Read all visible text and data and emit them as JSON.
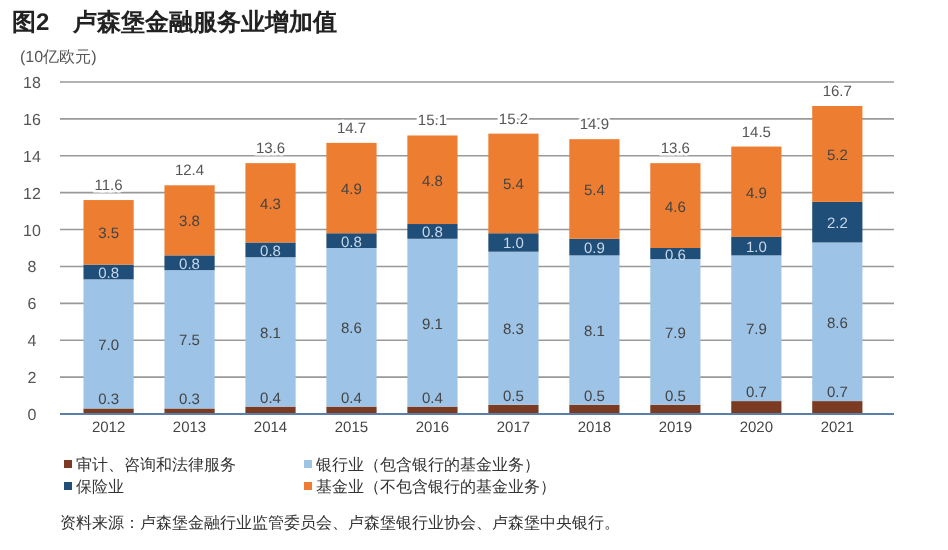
{
  "chart_data": {
    "type": "bar",
    "title": "图2　卢森堡金融服务业增加值",
    "ylabel": "(10亿欧元)",
    "categories": [
      "2012",
      "2013",
      "2014",
      "2015",
      "2016",
      "2017",
      "2018",
      "2019",
      "2020",
      "2021"
    ],
    "stacked": true,
    "series": [
      {
        "name": "审计、咨询和法律服务",
        "color": "#7b3a22",
        "values": [
          0.3,
          0.3,
          0.4,
          0.4,
          0.4,
          0.5,
          0.5,
          0.5,
          0.7,
          0.7
        ],
        "value_labels": [
          "0.3",
          "0.3",
          "0.4",
          "0.4",
          "0.4",
          "0.5",
          "0.5",
          "0.5",
          "0.7",
          "0.7"
        ]
      },
      {
        "name": "银行业（包含银行的基金业务）",
        "color": "#9dc3e6",
        "values": [
          7.0,
          7.5,
          8.1,
          8.6,
          9.1,
          8.3,
          8.1,
          7.9,
          7.9,
          8.6
        ],
        "value_labels": [
          "7.0",
          "7.5",
          "8.1",
          "8.6",
          "9.1",
          "8.3",
          "8.1",
          "7.9",
          "7.9",
          "8.6"
        ]
      },
      {
        "name": "保险业",
        "color": "#1f4e79",
        "values": [
          0.8,
          0.8,
          0.8,
          0.8,
          0.8,
          1.0,
          0.9,
          0.6,
          1.0,
          2.2
        ],
        "value_labels": [
          "0.8",
          "0.8",
          "0.8",
          "0.8",
          "0.8",
          "1.0",
          "0.9",
          "0.6",
          "1.0",
          "2.2"
        ]
      },
      {
        "name": "基金业（不包含银行的基金业务）",
        "color": "#ed7d31",
        "values": [
          3.5,
          3.8,
          4.3,
          4.9,
          4.8,
          5.4,
          5.4,
          4.6,
          4.9,
          5.2
        ],
        "value_labels": [
          "3.5",
          "3.8",
          "4.3",
          "4.9",
          "4.8",
          "5.4",
          "5.4",
          "4.6",
          "4.9",
          "5.2"
        ]
      }
    ],
    "totals": [
      "11.6",
      "12.4",
      "13.6",
      "14.7",
      "15.1",
      "15.2",
      "14.9",
      "13.6",
      "14.5",
      "16.7"
    ],
    "ylim": [
      0,
      18
    ],
    "yticks": [
      0,
      2,
      4,
      6,
      8,
      10,
      12,
      14,
      16,
      18
    ],
    "grid": "y",
    "legend": "bottom",
    "annotations": [
      "资料来源：卢森堡金融行业监管委员会、卢森堡银行业协会、卢森堡中央银行。"
    ]
  }
}
